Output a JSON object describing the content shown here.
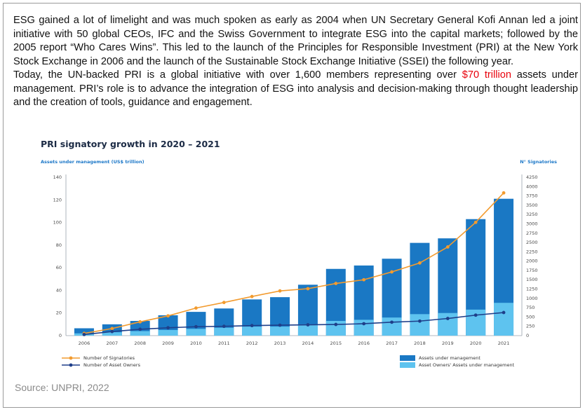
{
  "text": {
    "paragraph1": "ESG gained a lot of limelight and was much spoken as early as 2004 when UN Secretary General Kofi Annan led a joint initiative with 50 global CEOs, IFC and the Swiss Government to integrate ESG into the capital markets; followed by the 2005 report “Who Cares Wins”. This led to the launch of the Principles for Responsible Investment (PRI) at the New York Stock Exchange in 2006 and the launch of the Sustainable Stock Exchange Initiative (SSEI) the following year.",
    "paragraph2_before": "Today, the UN-backed PRI is a global initiative with over 1,600 members representing over ",
    "paragraph2_highlight": "$70 trillion",
    "paragraph2_after": " assets under management. PRI’s role is to advance the integration of ESG into analysis and decision-making through thought leadership and the creation of tools, guidance and engagement.",
    "source": "Source: UNPRI, 2022"
  },
  "colors": {
    "highlight": "#e8000b",
    "aum_bar": "#1a78c4",
    "owners_bar": "#5ec3ef",
    "signatories_line": "#f29b2f",
    "owners_line": "#1e3f8a"
  },
  "chart_data": {
    "type": "bar",
    "title": "PRI signatory growth in 2020 – 2021",
    "ylabel": "Assets under management (US$ trillion)",
    "y2label": "N° Signatories",
    "categories": [
      "2006",
      "2007",
      "2008",
      "2009",
      "2010",
      "2011",
      "2012",
      "2013",
      "2014",
      "2015",
      "2016",
      "2017",
      "2018",
      "2019",
      "2020",
      "2021"
    ],
    "ylim": [
      0,
      140
    ],
    "yticks": [
      0,
      20,
      40,
      60,
      80,
      100,
      120,
      140
    ],
    "y2lim": [
      0,
      4250
    ],
    "y2ticks": [
      0,
      250,
      500,
      750,
      1000,
      1250,
      1500,
      1750,
      2000,
      2250,
      2500,
      2750,
      3000,
      3250,
      3500,
      3750,
      4000,
      4250
    ],
    "series": [
      {
        "name": "Assets under management",
        "kind": "bar",
        "axis": "left",
        "values": [
          6.5,
          10,
          13,
          18,
          21,
          24,
          32,
          34,
          45,
          59,
          62,
          68,
          82,
          86,
          103,
          121
        ]
      },
      {
        "name": "Asset Owners' Assets under management",
        "kind": "bar",
        "axis": "left",
        "values": [
          2,
          3,
          4,
          5,
          6,
          7,
          8,
          8,
          10,
          13,
          14,
          16,
          19,
          20,
          23,
          29
        ]
      },
      {
        "name": "Number of Signatories",
        "kind": "line",
        "axis": "right",
        "values": [
          60,
          190,
          370,
          530,
          740,
          890,
          1050,
          1200,
          1260,
          1400,
          1500,
          1710,
          1950,
          2380,
          3040,
          3830
        ]
      },
      {
        "name": "Number of Asset Owners",
        "kind": "line",
        "axis": "right",
        "values": [
          30,
          110,
          170,
          210,
          240,
          250,
          270,
          280,
          290,
          300,
          320,
          360,
          390,
          460,
          550,
          620
        ]
      }
    ],
    "legend": [
      "Number of Signatories",
      "Number of Asset Owners",
      "Assets under management",
      "Asset Owners' Assets under management"
    ],
    "legend_position": "bottom",
    "grid": false
  }
}
